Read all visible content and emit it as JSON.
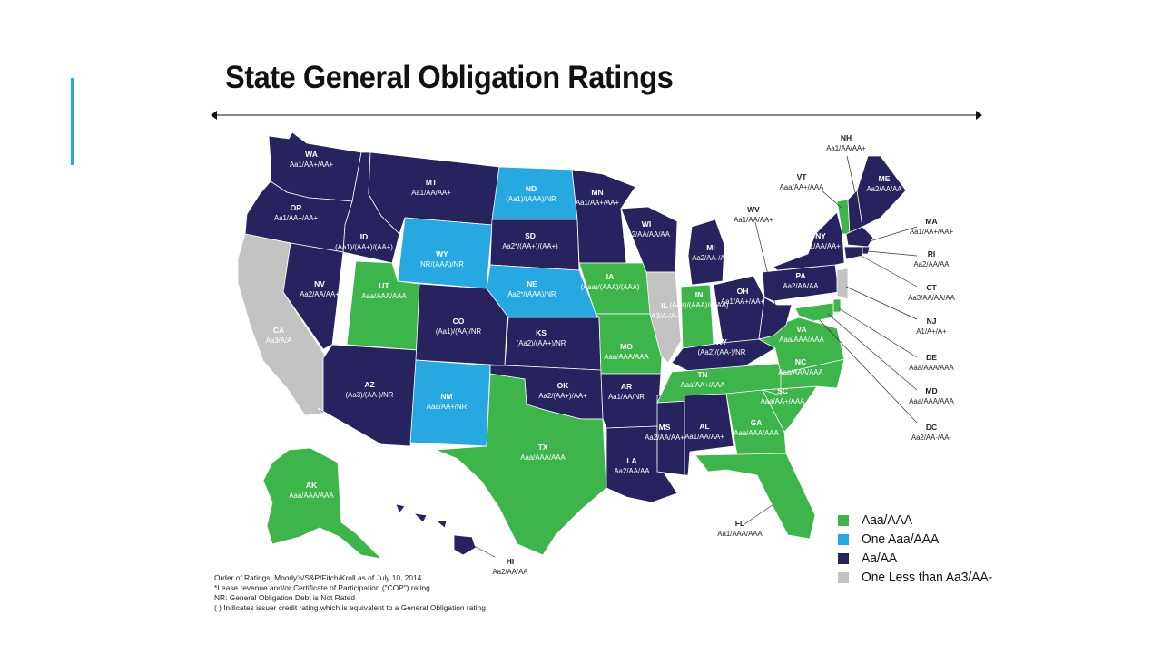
{
  "title": "State General Obligation Ratings",
  "colors": {
    "aaa": "#3db54a",
    "one_aaa": "#28a8e0",
    "aa": "#27235e",
    "less": "#c3c3c3",
    "accent": "#28a8e0"
  },
  "states": [
    {
      "code": "WA",
      "rating": "Aa1/AA+/AA+",
      "category": "aa"
    },
    {
      "code": "OR",
      "rating": "Aa1/AA+/AA+",
      "category": "aa"
    },
    {
      "code": "CA",
      "rating": "Aa3/A/A",
      "category": "less"
    },
    {
      "code": "NV",
      "rating": "Aa2/AA/AA+",
      "category": "aa"
    },
    {
      "code": "ID",
      "rating": "(Aa1)/(AA+)/(AA+)",
      "category": "aa"
    },
    {
      "code": "MT",
      "rating": "Aa1/AA/AA+",
      "category": "aa"
    },
    {
      "code": "WY",
      "rating": "NR/(AAA)/NR",
      "category": "one_aaa"
    },
    {
      "code": "UT",
      "rating": "Aaa/AAA/AAA",
      "category": "aaa"
    },
    {
      "code": "AZ",
      "rating": "(Aa3)/(AA-)/NR",
      "category": "aa"
    },
    {
      "code": "CO",
      "rating": "(Aa1)/(AA)/NR",
      "category": "aa"
    },
    {
      "code": "NM",
      "rating": "Aaa/AA+/NR",
      "category": "one_aaa"
    },
    {
      "code": "ND",
      "rating": "(Aa1)/(AAA)/NR",
      "category": "one_aaa"
    },
    {
      "code": "SD",
      "rating": "Aa2*/(AA+)/(AA+)",
      "category": "aa"
    },
    {
      "code": "NE",
      "rating": "Aa2*/(AAA)/NR",
      "category": "one_aaa"
    },
    {
      "code": "KS",
      "rating": "(Aa2)/(AA+)/NR",
      "category": "aa"
    },
    {
      "code": "OK",
      "rating": "Aa2/(AA+)/AA+",
      "category": "aa"
    },
    {
      "code": "TX",
      "rating": "Aaa/AAA/AAA",
      "category": "aaa"
    },
    {
      "code": "MN",
      "rating": "Aa1/AA+/AA+",
      "category": "aa"
    },
    {
      "code": "IA",
      "rating": "(Aaa)/(AAA)/(AAA)",
      "category": "aaa"
    },
    {
      "code": "MO",
      "rating": "Aaa/AAA/AAA",
      "category": "aaa"
    },
    {
      "code": "AR",
      "rating": "Aa1/AA/NR",
      "category": "aa"
    },
    {
      "code": "LA",
      "rating": "Aa2/AA/AA",
      "category": "aa"
    },
    {
      "code": "WI",
      "rating": "Aa2/AA/AA/AA",
      "category": "aa"
    },
    {
      "code": "IL",
      "rating": "A3/A-/A-",
      "category": "less"
    },
    {
      "code": "MS",
      "rating": "Aa2/AA/AA+",
      "category": "aa"
    },
    {
      "code": "MI",
      "rating": "Aa2/AA-/AA",
      "category": "aa"
    },
    {
      "code": "IN",
      "rating": "(Aaa)/(AAA)/(AAA)",
      "category": "aaa"
    },
    {
      "code": "OH",
      "rating": "Aa1/AA+/AA+",
      "category": "aa"
    },
    {
      "code": "KY",
      "rating": "(Aa2)/(AA-)/NR",
      "category": "aa"
    },
    {
      "code": "TN",
      "rating": "Aaa/AA+/AAA",
      "category": "aaa"
    },
    {
      "code": "AL",
      "rating": "Aa1/AA/AA+",
      "category": "aa"
    },
    {
      "code": "GA",
      "rating": "Aaa/AAA/AAA",
      "category": "aaa"
    },
    {
      "code": "FL",
      "rating": "Aa1/AAA/AAA",
      "category": "aaa"
    },
    {
      "code": "SC",
      "rating": "Aaa/AA+/AAA",
      "category": "aaa"
    },
    {
      "code": "NC",
      "rating": "Aaa/AAA/AAA",
      "category": "aaa"
    },
    {
      "code": "VA",
      "rating": "Aaa/AAA/AAA",
      "category": "aaa"
    },
    {
      "code": "WV",
      "rating": "Aa1/AA/AA+",
      "category": "aa"
    },
    {
      "code": "PA",
      "rating": "Aa2/AA/AA",
      "category": "aa"
    },
    {
      "code": "NY",
      "rating": "Aa1/AA/AA+",
      "category": "aa"
    },
    {
      "code": "VT",
      "rating": "Aaa/AA+/AAA",
      "category": "aaa"
    },
    {
      "code": "NH",
      "rating": "Aa1/AA/AA+",
      "category": "aa"
    },
    {
      "code": "ME",
      "rating": "Aa2/AA/AA",
      "category": "aa"
    },
    {
      "code": "MA",
      "rating": "Aa1/AA+/AA+",
      "category": "aa"
    },
    {
      "code": "RI",
      "rating": "Aa2/AA/AA",
      "category": "aa"
    },
    {
      "code": "CT",
      "rating": "Aa3/AA/AA/AA",
      "category": "aa"
    },
    {
      "code": "NJ",
      "rating": "A1/A+/A+",
      "category": "less"
    },
    {
      "code": "DE",
      "rating": "Aaa/AAA/AAA",
      "category": "aaa"
    },
    {
      "code": "MD",
      "rating": "Aaa/AAA/AAA",
      "category": "aaa"
    },
    {
      "code": "DC",
      "rating": "Aa2/AA-/AA-",
      "category": "aa"
    },
    {
      "code": "AK",
      "rating": "Aaa/AAA/AAA",
      "category": "aaa"
    },
    {
      "code": "HI",
      "rating": "Aa2/AA/AA",
      "category": "aa"
    }
  ],
  "legend": [
    {
      "label": "Aaa/AAA",
      "category": "aaa"
    },
    {
      "label": "One Aaa/AAA",
      "category": "one_aaa"
    },
    {
      "label": "Aa/AA",
      "category": "aa"
    },
    {
      "label": "One Less than Aa3/AA-",
      "category": "less"
    }
  ],
  "notes": [
    "Order of Ratings: Moody's/S&P/Fitch/Kroll as of July 10, 2014",
    "*Lease revenue and/or Certificate of Participation (\"COP\") rating",
    "NR: General Obligation Debt is Not Rated",
    "( ) Indicates issuer credit rating which is equivalent to a General Obligation rating"
  ]
}
